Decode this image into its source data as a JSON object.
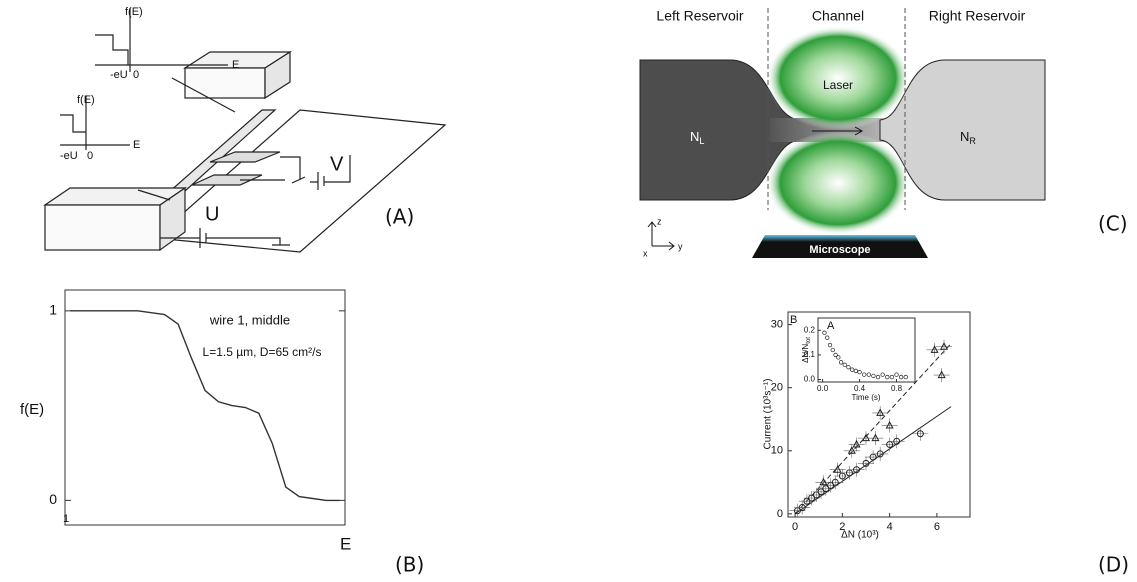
{
  "panel_a": {
    "tag": "(A)",
    "inset_top": {
      "ylabel": "f(E)",
      "tick_left": "-eU",
      "tick_zero": "0",
      "xlabel": "E"
    },
    "inset_bottom": {
      "ylabel": "f(E)",
      "tick_left": "-eU",
      "tick_zero": "0",
      "xlabel": "E"
    },
    "source_v": "V",
    "source_u": "U"
  },
  "panel_b": {
    "tag": "(B)",
    "corner_label": "1",
    "chart": {
      "type": "line",
      "title": "wire 1, middle",
      "annotation": "L=1.5 µm, D=65 cm²/s",
      "ylabel": "f(E)",
      "xlabel": "E",
      "x": [
        0,
        0.05,
        0.1,
        0.15,
        0.2,
        0.25,
        0.3,
        0.35,
        0.4,
        0.45,
        0.5,
        0.55,
        0.6,
        0.65,
        0.7,
        0.75,
        0.8,
        0.85,
        0.9,
        0.95,
        1.0
      ],
      "series": [
        {
          "color": "#333333",
          "values": [
            1,
            1,
            1,
            1,
            1,
            1,
            0.99,
            0.98,
            0.93,
            0.75,
            0.58,
            0.52,
            0.5,
            0.49,
            0.46,
            0.3,
            0.07,
            0.02,
            0.01,
            0,
            0
          ]
        }
      ],
      "xlim": [
        -0.02,
        1.02
      ],
      "ylim": [
        -0.13,
        1.11
      ],
      "yticks": [
        0,
        1
      ]
    }
  },
  "panel_c": {
    "tag": "(C)",
    "left_header": "Left Reservoir",
    "channel_header": "Channel",
    "right_header": "Right Reservoir",
    "laser": "Laser",
    "left_density": {
      "symbol": "N",
      "subscript": "L"
    },
    "right_density": {
      "symbol": "N",
      "subscript": "R"
    },
    "microscope": "Microscope",
    "axis_z": "z",
    "axis_y": "y",
    "axis_x": "x"
  },
  "panel_d": {
    "tag": "(D)",
    "chart": {
      "type": "scatter",
      "panel_label": "B",
      "ylabel": "Current (10³s⁻¹)",
      "xlabel": "ΔN (10³)",
      "xlim": [
        -0.3,
        7.4
      ],
      "ylim": [
        -0.5,
        32
      ],
      "xticks": [
        0,
        2,
        4,
        6
      ],
      "yticks": [
        0,
        10,
        20,
        30
      ],
      "series": [
        {
          "marker": "circle",
          "x": [
            0.1,
            0.3,
            0.5,
            0.7,
            0.9,
            1.1,
            1.3,
            1.5,
            1.7,
            2.0,
            2.3,
            2.6,
            3.0,
            3.3,
            3.6,
            4.0,
            4.3,
            5.3
          ],
          "values": [
            0.5,
            1,
            2,
            2.5,
            3,
            3.5,
            4,
            4.5,
            5,
            6,
            6.5,
            7,
            8,
            9,
            9.5,
            11,
            11.5,
            12.7
          ]
        },
        {
          "marker": "triangle",
          "x": [
            1.2,
            1.8,
            2.4,
            2.6,
            3.0,
            3.4,
            3.6,
            4.0,
            5.9,
            6.2,
            6.3
          ],
          "values": [
            5,
            7,
            10,
            11,
            12,
            12,
            16,
            14,
            26,
            22,
            26.5
          ]
        }
      ],
      "fits": [
        {
          "style": "solid",
          "x": [
            0,
            6.6
          ],
          "values": [
            0,
            17
          ]
        },
        {
          "style": "dashed",
          "x": [
            0,
            6.6
          ],
          "values": [
            0,
            27
          ]
        }
      ],
      "inset": {
        "type": "scatter",
        "panel_label": "A",
        "xlabel": "Time (s)",
        "ylabel": {
          "text": "ΔN/N",
          "subscript": "tot"
        },
        "xlim": [
          -0.05,
          1.0
        ],
        "ylim": [
          -0.01,
          0.25
        ],
        "xticks": [
          {
            "value": 0,
            "label": "0.0"
          },
          0.4,
          0.8
        ],
        "yticks": [
          {
            "value": 0,
            "label": "0.0"
          },
          0.1,
          0.2
        ],
        "x": [
          0.02,
          0.05,
          0.08,
          0.11,
          0.14,
          0.17,
          0.2,
          0.24,
          0.28,
          0.32,
          0.36,
          0.4,
          0.45,
          0.5,
          0.55,
          0.6,
          0.65,
          0.7,
          0.75,
          0.8,
          0.85,
          0.9
        ],
        "values": [
          0.19,
          0.17,
          0.14,
          0.12,
          0.1,
          0.09,
          0.07,
          0.06,
          0.05,
          0.04,
          0.035,
          0.03,
          0.02,
          0.02,
          0.015,
          0.01,
          0.02,
          0.01,
          0.01,
          0.02,
          0.01,
          0.01
        ]
      }
    }
  }
}
